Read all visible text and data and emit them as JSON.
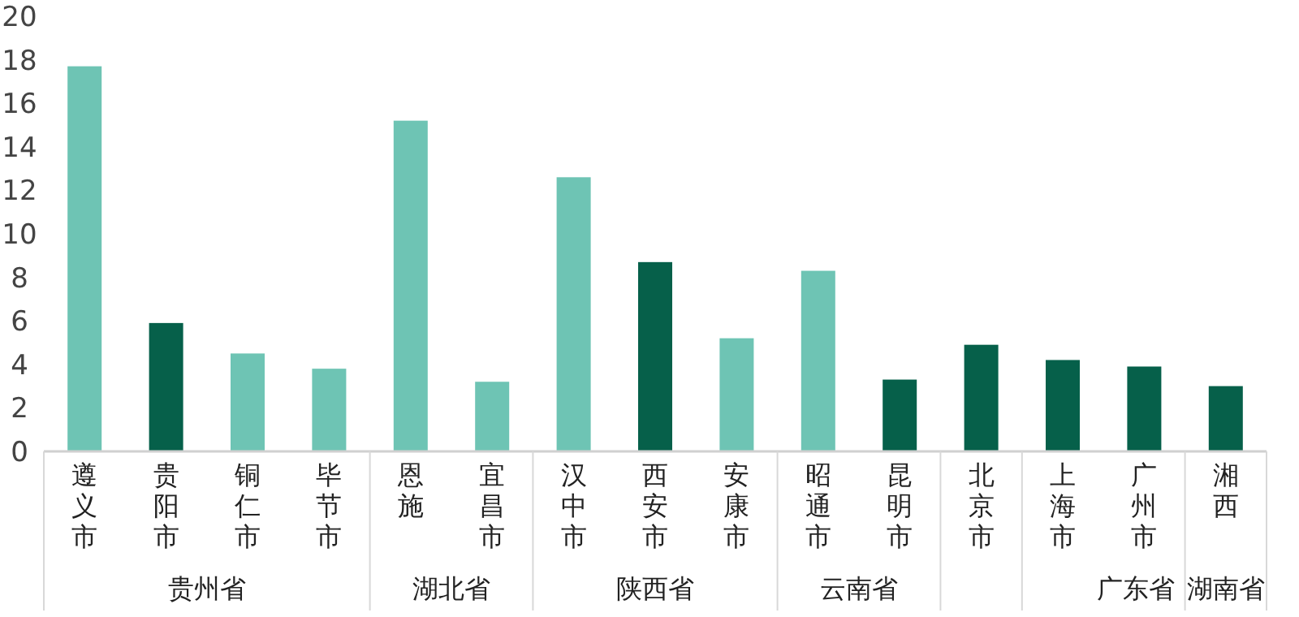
{
  "chart_data": {
    "type": "bar",
    "categories": [
      "遵义市",
      "贵阳市",
      "铜仁市",
      "毕节市",
      "恩施",
      "宜昌市",
      "汉中市",
      "西安市",
      "安康市",
      "昭通市",
      "昆明市",
      "北京市",
      "上海市",
      "广州市",
      "湘西"
    ],
    "values": [
      17.7,
      5.9,
      4.5,
      3.8,
      15.2,
      3.2,
      12.6,
      8.7,
      5.2,
      8.3,
      3.3,
      4.9,
      4.2,
      3.9,
      3.0
    ],
    "colors": [
      "#6ec4b4",
      "#06604a",
      "#6ec4b4",
      "#6ec4b4",
      "#6ec4b4",
      "#6ec4b4",
      "#6ec4b4",
      "#06604a",
      "#6ec4b4",
      "#6ec4b4",
      "#06604a",
      "#06604a",
      "#06604a",
      "#06604a",
      "#06604a"
    ],
    "ylim": [
      0,
      20
    ],
    "yticks": [
      0,
      2,
      4,
      6,
      8,
      10,
      12,
      14,
      16,
      18,
      20
    ],
    "annotations": [
      "贵州省",
      "湖北省",
      "陕西省",
      "云南省",
      "广东省",
      "湖南省"
    ]
  }
}
